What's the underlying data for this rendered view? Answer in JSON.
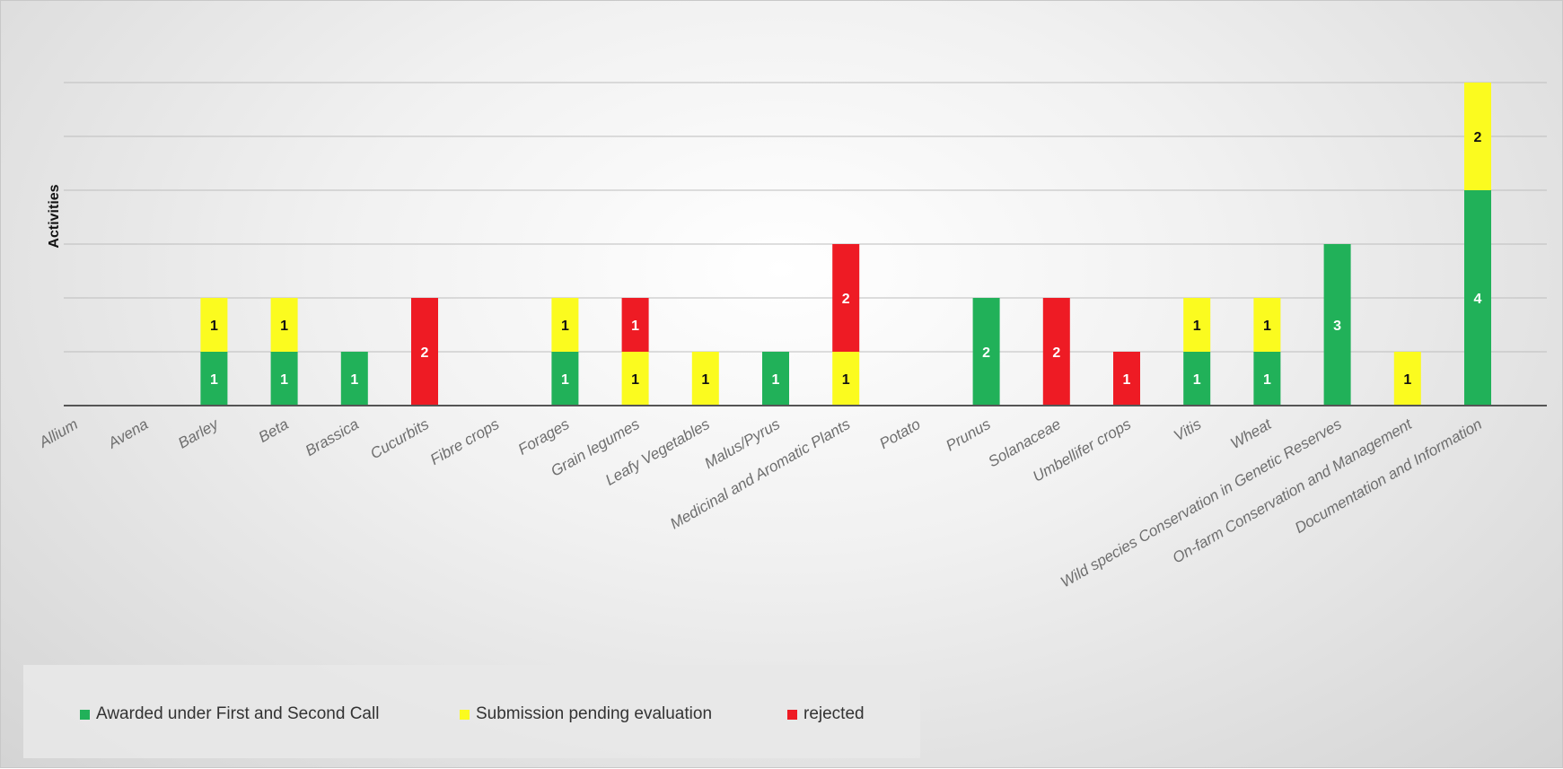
{
  "chart_data": {
    "type": "bar",
    "stacked": true,
    "title": "",
    "xlabel": "",
    "ylabel": "Activities",
    "ylim": [
      0,
      6
    ],
    "grid": true,
    "legend_position": "bottom-left",
    "categories": [
      "Allium",
      "Avena",
      "Barley",
      "Beta",
      "Brassica",
      "Cucurbits",
      "Fibre crops",
      "Forages",
      "Grain legumes",
      "Leafy Vegetables",
      "Malus/Pyrus",
      "Medicinal and Aromatic Plants",
      "Potato",
      "Prunus",
      "Solanaceae",
      "Umbellifer crops",
      "Vitis",
      "Wheat",
      "Wild species Conservation in Genetic Reserves",
      "On-farm Conservation and Management",
      "Documentation and Information"
    ],
    "series": [
      {
        "name": "Awarded under First and Second Call",
        "color": "#21b159",
        "label_color": "#ffffff",
        "values": [
          0,
          0,
          1,
          1,
          1,
          0,
          0,
          1,
          0,
          0,
          1,
          0,
          0,
          2,
          0,
          0,
          1,
          1,
          3,
          0,
          4
        ]
      },
      {
        "name": "Submission pending evaluation",
        "color": "#fbfb1f",
        "label_color": "#111111",
        "values": [
          0,
          0,
          1,
          1,
          0,
          0,
          0,
          1,
          1,
          1,
          0,
          1,
          0,
          0,
          0,
          0,
          1,
          1,
          0,
          1,
          2
        ]
      },
      {
        "name": "rejected",
        "color": "#ee1b24",
        "label_color": "#ffffff",
        "values": [
          0,
          0,
          0,
          0,
          0,
          2,
          0,
          0,
          1,
          0,
          0,
          2,
          0,
          0,
          2,
          1,
          0,
          0,
          0,
          0,
          0
        ]
      }
    ]
  }
}
